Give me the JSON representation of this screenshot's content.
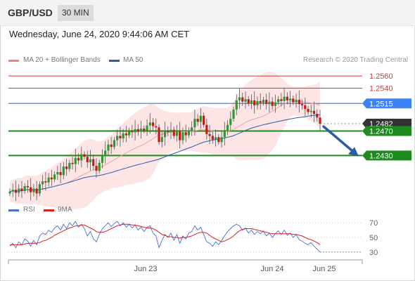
{
  "header": {
    "pair": "GBP/USD",
    "timeframe": "30 MIN"
  },
  "timestamp": "Wednesday, June 24, 2020 9:44:06 AM CET",
  "legend": {
    "bollinger": "MA 20 + Bollinger Bands",
    "ma50": "MA 50",
    "credit": "Research © 2020 Trading Central"
  },
  "rsi_legend": {
    "rsi": "RSI",
    "ma": "9MA"
  },
  "colors": {
    "up": "#2e9a2e",
    "down": "#c41a1a",
    "ma50": "#2e5aa8",
    "band": "#fde0e0",
    "resistance": "#d93636",
    "pivot": "#3b82f6",
    "support": "#1e8b1e"
  },
  "chart_data": [
    {
      "type": "candlestick",
      "title": "GBP/USD",
      "ylim": [
        1.2365,
        1.2575
      ],
      "x_ticks": [
        "Jun 23",
        "Jun 24",
        "Jun 25"
      ],
      "levels": [
        {
          "value": 1.256,
          "label": "1.2560",
          "kind": "resistance"
        },
        {
          "value": 1.254,
          "label": "1.2540",
          "kind": "resistance"
        },
        {
          "value": 1.2515,
          "label": "1.2515",
          "kind": "pivot"
        },
        {
          "value": 1.2482,
          "label": "1.2482",
          "kind": "last"
        },
        {
          "value": 1.247,
          "label": "1.2470",
          "kind": "support"
        },
        {
          "value": 1.243,
          "label": "1.2430",
          "kind": "support"
        }
      ],
      "closes": [
        1.2371,
        1.2374,
        1.2369,
        1.2376,
        1.2372,
        1.238,
        1.2378,
        1.237,
        1.2376,
        1.2368,
        1.2383,
        1.2388,
        1.2386,
        1.2394,
        1.2391,
        1.2399,
        1.2403,
        1.2398,
        1.2412,
        1.2408,
        1.2418,
        1.2416,
        1.2426,
        1.2422,
        1.2432,
        1.2428,
        1.2419,
        1.2424,
        1.2413,
        1.2405,
        1.2418,
        1.243,
        1.2438,
        1.2448,
        1.2444,
        1.2455,
        1.2462,
        1.2458,
        1.2466,
        1.2463,
        1.247,
        1.2468,
        1.2473,
        1.2469,
        1.2474,
        1.2471,
        1.2479,
        1.2484,
        1.2478,
        1.2476,
        1.2452,
        1.246,
        1.247,
        1.2468,
        1.2472,
        1.2462,
        1.247,
        1.2455,
        1.2468,
        1.2463,
        1.2471,
        1.2476,
        1.249,
        1.2485,
        1.2495,
        1.248,
        1.2465,
        1.2462,
        1.2456,
        1.246,
        1.2452,
        1.246,
        1.247,
        1.248,
        1.249,
        1.2505,
        1.252,
        1.2525,
        1.2518,
        1.2522,
        1.2515,
        1.252,
        1.2512,
        1.2519,
        1.2516,
        1.2521,
        1.2514,
        1.2518,
        1.2511,
        1.2517,
        1.2522,
        1.2519,
        1.2526,
        1.252,
        1.2523,
        1.2517,
        1.2521,
        1.2514,
        1.2512,
        1.2506,
        1.2501,
        1.2503,
        1.2498,
        1.2492,
        1.2482
      ]
    },
    {
      "type": "line",
      "title": "RSI",
      "ylim": [
        25,
        75
      ],
      "y_ticks": [
        70,
        50,
        30
      ],
      "series": [
        {
          "name": "RSI",
          "values": [
            38,
            42,
            36,
            44,
            40,
            48,
            45,
            38,
            46,
            40,
            52,
            56,
            54,
            60,
            57,
            63,
            66,
            60,
            68,
            62,
            70,
            66,
            72,
            64,
            68,
            62,
            52,
            58,
            48,
            44,
            54,
            62,
            66,
            70,
            65,
            69,
            72,
            66,
            70,
            64,
            68,
            63,
            67,
            60,
            64,
            58,
            64,
            66,
            56,
            52,
            36,
            46,
            54,
            50,
            56,
            46,
            54,
            42,
            52,
            48,
            56,
            58,
            66,
            60,
            64,
            54,
            44,
            42,
            38,
            44,
            40,
            46,
            52,
            58,
            62,
            66,
            68,
            66,
            60,
            63,
            56,
            60,
            54,
            58,
            55,
            59,
            52,
            56,
            50,
            55,
            59,
            54,
            60,
            53,
            56,
            50,
            54,
            47,
            45,
            42,
            40,
            43,
            38,
            34,
            30
          ]
        },
        {
          "name": "9MA",
          "values": [
            40,
            40,
            40,
            40,
            40,
            41,
            42,
            42,
            42,
            42,
            43,
            45,
            46,
            48,
            50,
            53,
            55,
            57,
            59,
            61,
            63,
            64,
            66,
            66,
            67,
            67,
            65,
            63,
            61,
            58,
            57,
            57,
            58,
            60,
            62,
            64,
            66,
            67,
            68,
            68,
            68,
            67,
            67,
            66,
            65,
            64,
            63,
            63,
            62,
            60,
            57,
            54,
            53,
            51,
            51,
            50,
            50,
            49,
            50,
            50,
            51,
            52,
            54,
            56,
            57,
            57,
            56,
            53,
            50,
            48,
            46,
            44,
            45,
            47,
            49,
            52,
            56,
            59,
            61,
            62,
            62,
            62,
            61,
            60,
            59,
            58,
            57,
            56,
            55,
            55,
            55,
            55,
            55,
            55,
            55,
            54,
            54,
            53,
            52,
            50,
            48,
            47,
            45,
            43,
            40
          ]
        }
      ]
    }
  ]
}
